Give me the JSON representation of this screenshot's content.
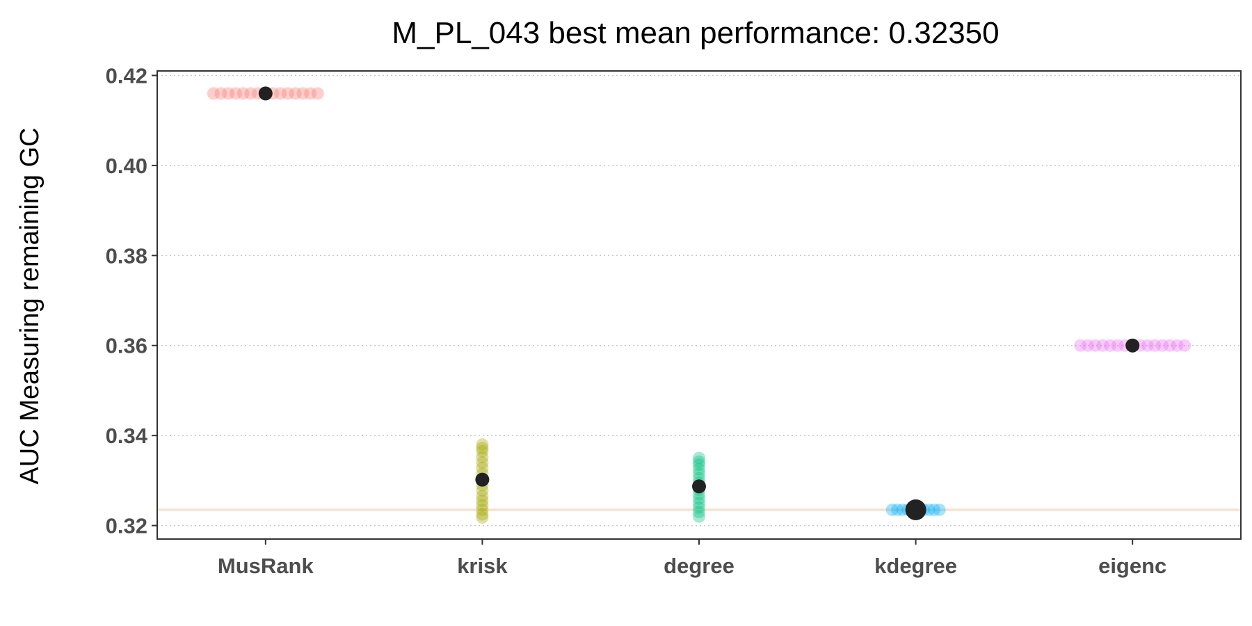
{
  "chart_data": {
    "type": "scatter",
    "title": "M_PL_043 best mean performance: 0.32350",
    "xlabel": "",
    "ylabel": "AUC Measuring remaining GC",
    "categories": [
      "MusRank",
      "krisk",
      "degree",
      "kdegree",
      "eigenc"
    ],
    "ylim": [
      0.317,
      0.421
    ],
    "yticks": [
      0.32,
      0.34,
      0.36,
      0.38,
      0.4,
      0.42
    ],
    "ytick_labels": [
      "0.32",
      "0.34",
      "0.36",
      "0.38",
      "0.40",
      "0.42"
    ],
    "grid": "horizontal-dotted",
    "reference_line": {
      "value": 0.3235,
      "color": "#f5e6d3"
    },
    "series": [
      {
        "category": "MusRank",
        "color": "#f8766d",
        "spread": "horizontal",
        "values": [
          0.416,
          0.416,
          0.416,
          0.416,
          0.416,
          0.416,
          0.416,
          0.416,
          0.416,
          0.416,
          0.416,
          0.416,
          0.416,
          0.416,
          0.416
        ],
        "mean": 0.416
      },
      {
        "category": "krisk",
        "color": "#a3a500",
        "spread": "vertical",
        "values": [
          0.3218,
          0.3225,
          0.3235,
          0.3245,
          0.3255,
          0.3265,
          0.3278,
          0.329,
          0.3302,
          0.3315,
          0.3328,
          0.334,
          0.3352,
          0.3365,
          0.3372,
          0.338
        ],
        "mean": 0.3302
      },
      {
        "category": "degree",
        "color": "#00bf7d",
        "spread": "vertical",
        "values": [
          0.322,
          0.323,
          0.324,
          0.325,
          0.326,
          0.327,
          0.328,
          0.3287,
          0.3295,
          0.3305,
          0.3315,
          0.3325,
          0.3335,
          0.3342,
          0.335
        ],
        "mean": 0.3287
      },
      {
        "category": "kdegree",
        "color": "#00b0f6",
        "spread": "horizontal",
        "values": [
          0.3235,
          0.3235,
          0.3235,
          0.3235,
          0.3235,
          0.3235,
          0.3235,
          0.3235,
          0.3235,
          0.3235
        ],
        "mean": 0.3235,
        "best": true
      },
      {
        "category": "eigenc",
        "color": "#e76bf3",
        "spread": "horizontal",
        "values": [
          0.36,
          0.36,
          0.36,
          0.36,
          0.36,
          0.36,
          0.36,
          0.36,
          0.36,
          0.36,
          0.36,
          0.36,
          0.36,
          0.36,
          0.36
        ],
        "mean": 0.36
      }
    ]
  }
}
